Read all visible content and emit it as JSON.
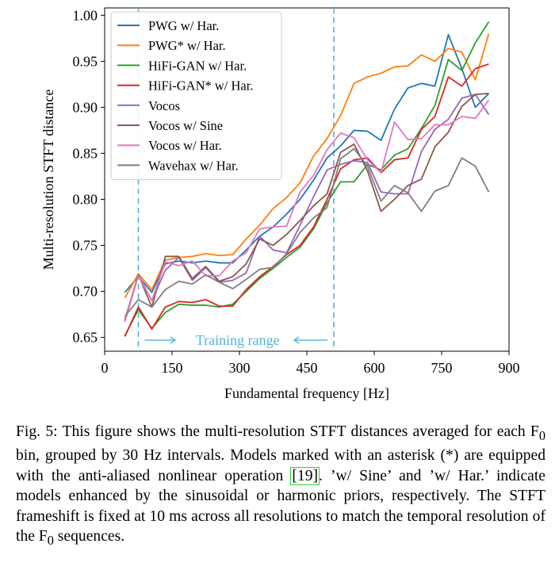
{
  "chart_data": {
    "type": "line",
    "xlabel": "Fundamental frequency [Hz]",
    "ylabel": "Multi-resolution STFT distance",
    "xlim": [
      0,
      900
    ],
    "ylim": [
      0.635,
      1.008
    ],
    "xticks": [
      0,
      150,
      300,
      450,
      600,
      750,
      900
    ],
    "yticks": [
      0.65,
      0.7,
      0.75,
      0.8,
      0.85,
      0.9,
      0.95,
      1.0
    ],
    "yticklabels": [
      "0.65",
      "0.70",
      "0.75",
      "0.80",
      "0.85",
      "0.90",
      "0.95",
      "1.00"
    ],
    "grid": false,
    "legend_position": "top-left",
    "x": [
      45,
      75,
      105,
      135,
      165,
      195,
      225,
      255,
      285,
      315,
      345,
      375,
      405,
      435,
      465,
      495,
      525,
      555,
      585,
      615,
      645,
      675,
      705,
      735,
      765,
      795,
      825,
      855
    ],
    "series": [
      {
        "name": "PWG w/ Har.",
        "color": "#1f77b4",
        "values": [
          0.699,
          0.716,
          0.699,
          0.73,
          0.733,
          0.731,
          0.733,
          0.731,
          0.731,
          0.745,
          0.76,
          0.77,
          0.784,
          0.8,
          0.821,
          0.845,
          0.858,
          0.875,
          0.874,
          0.864,
          0.898,
          0.921,
          0.926,
          0.923,
          0.979,
          0.942,
          0.9,
          0.915
        ]
      },
      {
        "name": "PWG* w/ Har.",
        "color": "#ff7f0e",
        "values": [
          0.693,
          0.719,
          0.702,
          0.734,
          0.737,
          0.738,
          0.741,
          0.739,
          0.74,
          0.757,
          0.772,
          0.79,
          0.802,
          0.818,
          0.847,
          0.866,
          0.891,
          0.926,
          0.933,
          0.937,
          0.944,
          0.945,
          0.957,
          0.95,
          0.964,
          0.96,
          0.93,
          0.98
        ]
      },
      {
        "name": "HiFi-GAN w/ Har.",
        "color": "#2ca02c",
        "values": [
          0.652,
          0.68,
          0.66,
          0.677,
          0.686,
          0.685,
          0.685,
          0.683,
          0.686,
          0.7,
          0.714,
          0.725,
          0.737,
          0.748,
          0.768,
          0.796,
          0.819,
          0.819,
          0.838,
          0.832,
          0.848,
          0.855,
          0.877,
          0.902,
          0.952,
          0.94,
          0.97,
          0.993
        ]
      },
      {
        "name": "HiFi-GAN* w/ Har.",
        "color": "#d62728",
        "values": [
          0.651,
          0.683,
          0.659,
          0.683,
          0.689,
          0.688,
          0.691,
          0.684,
          0.684,
          0.702,
          0.716,
          0.727,
          0.74,
          0.75,
          0.77,
          0.8,
          0.833,
          0.843,
          0.845,
          0.829,
          0.843,
          0.845,
          0.876,
          0.89,
          0.933,
          0.923,
          0.942,
          0.947
        ]
      },
      {
        "name": "Vocos",
        "color": "#9467bd",
        "values": [
          0.668,
          0.718,
          0.69,
          0.723,
          0.737,
          0.712,
          0.726,
          0.71,
          0.712,
          0.72,
          0.76,
          0.745,
          0.742,
          0.772,
          0.803,
          0.832,
          0.838,
          0.842,
          0.84,
          0.808,
          0.806,
          0.806,
          0.852,
          0.876,
          0.887,
          0.91,
          0.914,
          0.892
        ]
      },
      {
        "name": "Vocos w/ Sine",
        "color": "#8c564b",
        "values": [
          0.669,
          0.718,
          0.683,
          0.738,
          0.738,
          0.714,
          0.727,
          0.711,
          0.716,
          0.73,
          0.757,
          0.75,
          0.762,
          0.777,
          0.793,
          0.806,
          0.851,
          0.86,
          0.831,
          0.787,
          0.8,
          0.815,
          0.822,
          0.857,
          0.873,
          0.901,
          0.914,
          0.915
        ]
      },
      {
        "name": "Vocos w/ Har.",
        "color": "#e377c2",
        "values": [
          0.667,
          0.717,
          0.69,
          0.732,
          0.728,
          0.733,
          0.717,
          0.717,
          0.733,
          0.742,
          0.768,
          0.77,
          0.771,
          0.808,
          0.826,
          0.854,
          0.872,
          0.867,
          0.843,
          0.829,
          0.884,
          0.865,
          0.866,
          0.881,
          0.881,
          0.89,
          0.888,
          0.908
        ]
      },
      {
        "name": "Wavehax w/ Har.",
        "color": "#7f7f7f",
        "values": [
          0.673,
          0.691,
          0.683,
          0.702,
          0.711,
          0.708,
          0.718,
          0.71,
          0.703,
          0.713,
          0.724,
          0.726,
          0.741,
          0.764,
          0.78,
          0.791,
          0.844,
          0.855,
          0.836,
          0.798,
          0.815,
          0.807,
          0.787,
          0.809,
          0.815,
          0.845,
          0.836,
          0.808
        ]
      }
    ],
    "vlines": [
      {
        "x": 75,
        "color": "#4fb3d9"
      },
      {
        "x": 510,
        "color": "#4fb3d9"
      }
    ],
    "annotation": {
      "text": "Training range",
      "x_from": 75,
      "x_to": 510,
      "y": 0.647,
      "color": "#4fb3d9"
    }
  },
  "caption": {
    "part1": "Fig. 5: This figure shows the multi-resolution STFT distances averaged for each F",
    "f0_sub": "0",
    "part2": " bin, grouped by 30 Hz intervals. Models marked with an asterisk (*) are equipped with the anti-aliased nonlinear operation ",
    "ref": "[19]",
    "part3": ". ’w/ Sine’ and ’w/ Har.’ indicate models enhanced by the sinusoidal or harmonic priors, respectively. The STFT frameshift is fixed at 10 ms across all resolutions to match the temporal resolution of the F",
    "f0_sub2": "0",
    "part4": " sequences."
  }
}
